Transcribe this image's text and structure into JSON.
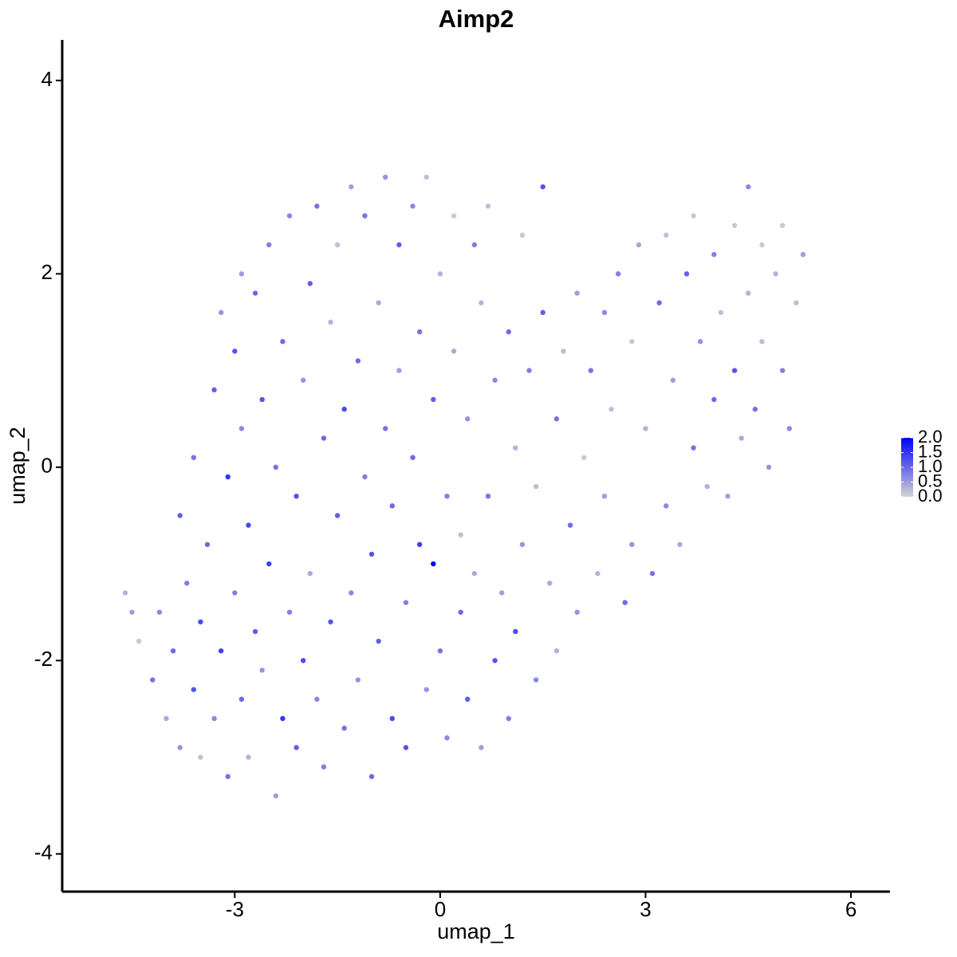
{
  "chart_data": {
    "type": "scatter",
    "title": "Aimp2",
    "x_label": "umap_1",
    "y_label": "umap_2",
    "x": [
      -4.6,
      -4.5,
      -4.4,
      -4.2,
      -4.1,
      -4.0,
      -3.9,
      -3.8,
      -3.8,
      -3.7,
      -3.6,
      -3.6,
      -3.5,
      -3.5,
      -3.4,
      -3.3,
      -3.3,
      -3.2,
      -3.2,
      -3.1,
      -3.1,
      -3.0,
      -3.0,
      -2.9,
      -2.9,
      -2.9,
      -2.8,
      -2.8,
      -2.7,
      -2.7,
      -2.6,
      -2.6,
      -2.5,
      -2.5,
      -2.4,
      -2.4,
      -2.3,
      -2.3,
      -2.2,
      -2.2,
      -2.1,
      -2.1,
      -2.0,
      -2.0,
      -1.9,
      -1.9,
      -1.8,
      -1.8,
      -1.7,
      -1.7,
      -1.6,
      -1.6,
      -1.5,
      -1.5,
      -1.4,
      -1.4,
      -1.3,
      -1.3,
      -1.2,
      -1.2,
      -1.1,
      -1.1,
      -1.0,
      -1.0,
      -0.9,
      -0.9,
      -0.8,
      -0.8,
      -0.7,
      -0.7,
      -0.6,
      -0.6,
      -0.5,
      -0.5,
      -0.4,
      -0.4,
      -0.3,
      -0.3,
      -0.2,
      -0.2,
      -0.1,
      -0.1,
      0.0,
      0.0,
      0.1,
      0.1,
      0.2,
      0.2,
      0.3,
      0.3,
      0.4,
      0.4,
      0.5,
      0.5,
      0.6,
      0.6,
      0.7,
      0.7,
      0.8,
      0.8,
      0.9,
      1.0,
      1.0,
      1.1,
      1.1,
      1.2,
      1.2,
      1.3,
      1.4,
      1.4,
      1.5,
      1.5,
      1.6,
      1.7,
      1.7,
      1.8,
      1.9,
      2.0,
      2.0,
      2.1,
      2.2,
      2.3,
      2.4,
      2.4,
      2.5,
      2.6,
      2.7,
      2.8,
      2.8,
      2.9,
      3.0,
      3.1,
      3.2,
      3.3,
      3.3,
      3.4,
      3.5,
      3.6,
      3.7,
      3.7,
      3.8,
      3.9,
      4.0,
      4.0,
      4.1,
      4.2,
      4.3,
      4.3,
      4.4,
      4.5,
      4.5,
      4.6,
      4.7,
      4.7,
      4.8,
      4.9,
      5.0,
      5.0,
      5.1,
      5.2,
      5.3
    ],
    "y": [
      -1.3,
      -1.5,
      -1.8,
      -2.2,
      -1.5,
      -2.6,
      -1.9,
      -2.9,
      -0.5,
      -1.2,
      -2.3,
      0.1,
      -3.0,
      -1.6,
      -0.8,
      0.8,
      -2.6,
      -1.9,
      1.6,
      -3.2,
      -0.1,
      -1.3,
      1.2,
      -2.4,
      0.4,
      2.0,
      -0.6,
      -3.0,
      -1.7,
      1.8,
      0.7,
      -2.1,
      -1.0,
      2.3,
      -3.4,
      0.0,
      -2.6,
      1.3,
      -1.5,
      2.6,
      -0.3,
      -2.9,
      0.9,
      -2.0,
      -1.1,
      1.9,
      2.7,
      -2.4,
      0.3,
      -3.1,
      -1.6,
      1.5,
      -0.5,
      2.3,
      -2.7,
      0.6,
      2.9,
      -1.3,
      1.1,
      -2.2,
      -0.1,
      2.6,
      -3.2,
      -0.9,
      1.7,
      -1.8,
      0.4,
      3.0,
      -2.6,
      -0.4,
      2.3,
      1.0,
      -1.4,
      -2.9,
      0.1,
      2.7,
      -0.8,
      1.4,
      -2.3,
      3.0,
      -1.0,
      0.7,
      -1.9,
      2.0,
      -2.8,
      -0.3,
      1.2,
      2.6,
      -1.5,
      -0.7,
      0.5,
      -2.4,
      2.3,
      -1.1,
      1.7,
      -2.9,
      -0.3,
      2.7,
      -2.0,
      0.9,
      -1.3,
      1.4,
      -2.6,
      0.2,
      -1.7,
      2.4,
      -0.8,
      1.0,
      -2.2,
      -0.2,
      1.6,
      2.9,
      -1.2,
      0.5,
      -1.9,
      1.2,
      -0.6,
      1.8,
      -1.5,
      0.1,
      1.0,
      -1.1,
      1.6,
      -0.3,
      0.6,
      2.0,
      -1.4,
      1.3,
      -0.8,
      2.3,
      0.4,
      -1.1,
      1.7,
      -0.4,
      2.4,
      0.9,
      -0.8,
      2.0,
      0.2,
      2.6,
      1.3,
      -0.2,
      2.2,
      0.7,
      1.6,
      -0.3,
      2.5,
      1.0,
      0.3,
      2.9,
      1.8,
      0.6,
      2.3,
      1.3,
      0.0,
      2.0,
      1.0,
      2.5,
      0.4,
      1.7,
      2.2
    ],
    "expression": [
      0.3,
      0.5,
      0.1,
      0.9,
      0.7,
      0.4,
      1.0,
      0.6,
      1.1,
      0.8,
      1.2,
      0.9,
      0.2,
      1.3,
      1.0,
      1.1,
      0.7,
      1.4,
      0.6,
      0.9,
      1.5,
      0.8,
      1.2,
      1.0,
      0.7,
      0.5,
      1.3,
      0.3,
      1.1,
      1.0,
      1.2,
      0.6,
      1.4,
      0.8,
      0.5,
      0.9,
      1.5,
      1.0,
      0.8,
      0.7,
      1.2,
      1.1,
      0.6,
      1.3,
      0.4,
      1.1,
      0.9,
      0.7,
      1.0,
      0.8,
      1.2,
      0.3,
      1.1,
      0.2,
      0.9,
      1.3,
      0.5,
      0.7,
      1.0,
      0.6,
      0.8,
      0.9,
      1.0,
      1.2,
      0.4,
      1.1,
      0.9,
      0.6,
      1.3,
      1.0,
      1.1,
      0.5,
      0.8,
      1.2,
      1.0,
      0.7,
      1.4,
      0.9,
      0.6,
      0.2,
      2.0,
      1.1,
      0.9,
      0.3,
      0.7,
      0.8,
      0.4,
      0.1,
      1.0,
      0.2,
      0.6,
      1.1,
      0.8,
      0.4,
      0.3,
      0.5,
      0.9,
      0.2,
      1.2,
      0.7,
      0.5,
      1.0,
      0.8,
      0.3,
      1.3,
      0.1,
      0.6,
      0.8,
      0.7,
      0.2,
      1.1,
      1.2,
      0.4,
      0.9,
      0.3,
      0.2,
      1.0,
      0.5,
      0.6,
      0.1,
      0.9,
      0.3,
      0.7,
      0.5,
      0.2,
      0.8,
      1.0,
      0.1,
      0.6,
      0.4,
      0.3,
      0.9,
      1.0,
      0.7,
      0.2,
      0.5,
      0.4,
      1.1,
      0.9,
      0.1,
      0.6,
      0.3,
      0.8,
      1.0,
      0.2,
      0.5,
      0.1,
      1.2,
      0.4,
      0.7,
      0.3,
      0.9,
      0.1,
      0.2,
      0.6,
      0.3,
      0.8,
      0.1,
      0.7,
      0.2,
      0.5
    ],
    "color_low": "#d3d3d3",
    "color_high": "#0000ff",
    "xlim": [
      -5.52,
      6.57
    ],
    "xticks": [
      -3,
      0,
      3,
      6
    ],
    "ylim": [
      -4.39,
      4.42
    ],
    "yticks": [
      -4,
      -2,
      0,
      2,
      4
    ],
    "colorbar": {
      "lim": [
        0,
        2
      ],
      "ticks": [
        {
          "value": 0,
          "label": "0.0"
        },
        {
          "value": 0.5,
          "label": "0.5"
        },
        {
          "value": 1,
          "label": "1.0"
        },
        {
          "value": 1.5,
          "label": "1.5"
        },
        {
          "value": 2,
          "label": "2.0"
        }
      ]
    }
  }
}
